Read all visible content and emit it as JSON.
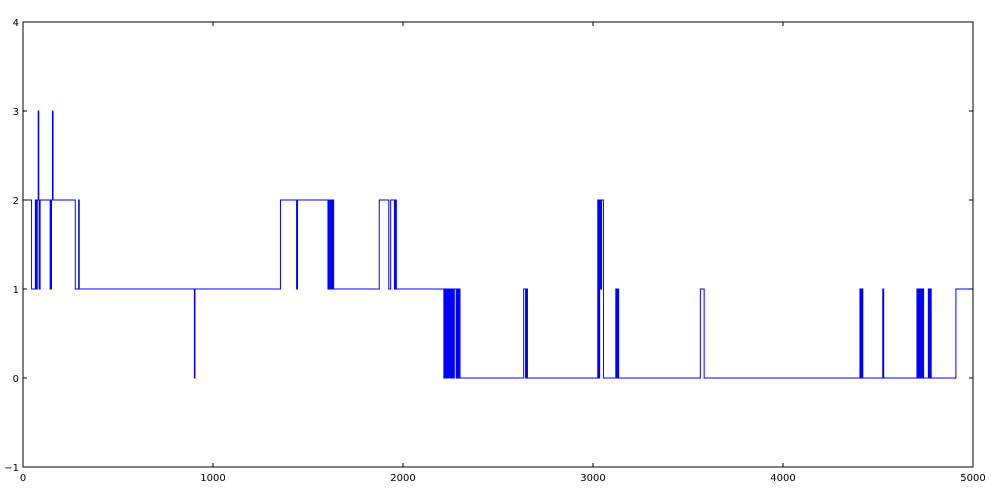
{
  "chart_data": {
    "type": "line",
    "title": "",
    "xlabel": "",
    "ylabel": "",
    "xlim": [
      0,
      5000
    ],
    "ylim": [
      -1,
      4
    ],
    "x_ticks": [
      "0",
      "1000",
      "2000",
      "3000",
      "4000",
      "5000"
    ],
    "y_ticks": [
      "−1",
      "0",
      "1",
      "2",
      "3",
      "4"
    ],
    "x_tick_values": [
      0,
      1000,
      2000,
      3000,
      4000,
      5000
    ],
    "y_tick_values": [
      -1,
      0,
      1,
      2,
      3,
      4
    ],
    "grid": false,
    "step": true,
    "series": [
      {
        "color": "#0000ff",
        "points": [
          [
            0,
            2
          ],
          [
            40,
            2
          ],
          [
            45,
            1
          ],
          [
            60,
            1
          ],
          [
            65,
            2
          ],
          [
            70,
            1
          ],
          [
            75,
            2
          ],
          [
            80,
            3
          ],
          [
            83,
            2
          ],
          [
            85,
            1
          ],
          [
            90,
            2
          ],
          [
            140,
            2
          ],
          [
            143,
            1
          ],
          [
            146,
            2
          ],
          [
            148,
            1
          ],
          [
            150,
            2
          ],
          [
            155,
            3
          ],
          [
            158,
            2
          ],
          [
            270,
            2
          ],
          [
            275,
            1
          ],
          [
            290,
            1
          ],
          [
            293,
            2
          ],
          [
            296,
            1
          ],
          [
            900,
            1
          ],
          [
            902,
            0
          ],
          [
            905,
            1
          ],
          [
            1350,
            1
          ],
          [
            1355,
            2
          ],
          [
            1435,
            2
          ],
          [
            1440,
            1
          ],
          [
            1445,
            2
          ],
          [
            1600,
            2
          ],
          [
            1605,
            1
          ],
          [
            1610,
            2
          ],
          [
            1615,
            1
          ],
          [
            1620,
            2
          ],
          [
            1625,
            1
          ],
          [
            1630,
            2
          ],
          [
            1635,
            1
          ],
          [
            1870,
            1
          ],
          [
            1875,
            2
          ],
          [
            1920,
            2
          ],
          [
            1925,
            1
          ],
          [
            1935,
            2
          ],
          [
            1950,
            2
          ],
          [
            1955,
            1
          ],
          [
            1960,
            2
          ],
          [
            1965,
            1
          ],
          [
            2210,
            1
          ],
          [
            2215,
            0
          ],
          [
            2220,
            1
          ],
          [
            2225,
            0
          ],
          [
            2230,
            1
          ],
          [
            2235,
            0
          ],
          [
            2240,
            1
          ],
          [
            2245,
            0
          ],
          [
            2250,
            1
          ],
          [
            2255,
            0
          ],
          [
            2260,
            1
          ],
          [
            2265,
            0
          ],
          [
            2270,
            1
          ],
          [
            2280,
            0
          ],
          [
            2285,
            1
          ],
          [
            2290,
            0
          ],
          [
            2295,
            1
          ],
          [
            2300,
            0
          ],
          [
            2630,
            0
          ],
          [
            2635,
            1
          ],
          [
            2645,
            0
          ],
          [
            2650,
            1
          ],
          [
            2655,
            0
          ],
          [
            3020,
            0
          ],
          [
            3025,
            2
          ],
          [
            3030,
            0
          ],
          [
            3035,
            2
          ],
          [
            3040,
            1
          ],
          [
            3045,
            2
          ],
          [
            3055,
            0
          ],
          [
            3115,
            0
          ],
          [
            3120,
            1
          ],
          [
            3125,
            0
          ],
          [
            3130,
            1
          ],
          [
            3135,
            0
          ],
          [
            3560,
            0
          ],
          [
            3565,
            1
          ],
          [
            3585,
            0
          ],
          [
            4400,
            0
          ],
          [
            4405,
            1
          ],
          [
            4410,
            0
          ],
          [
            4415,
            1
          ],
          [
            4420,
            0
          ],
          [
            4520,
            0
          ],
          [
            4525,
            1
          ],
          [
            4530,
            0
          ],
          [
            4700,
            0
          ],
          [
            4705,
            1
          ],
          [
            4710,
            0
          ],
          [
            4715,
            1
          ],
          [
            4720,
            0
          ],
          [
            4725,
            1
          ],
          [
            4730,
            0
          ],
          [
            4735,
            1
          ],
          [
            4740,
            0
          ],
          [
            4760,
            0
          ],
          [
            4765,
            1
          ],
          [
            4770,
            0
          ],
          [
            4775,
            1
          ],
          [
            4780,
            0
          ],
          [
            4905,
            0
          ],
          [
            4910,
            1
          ],
          [
            5000,
            1
          ]
        ]
      }
    ]
  }
}
